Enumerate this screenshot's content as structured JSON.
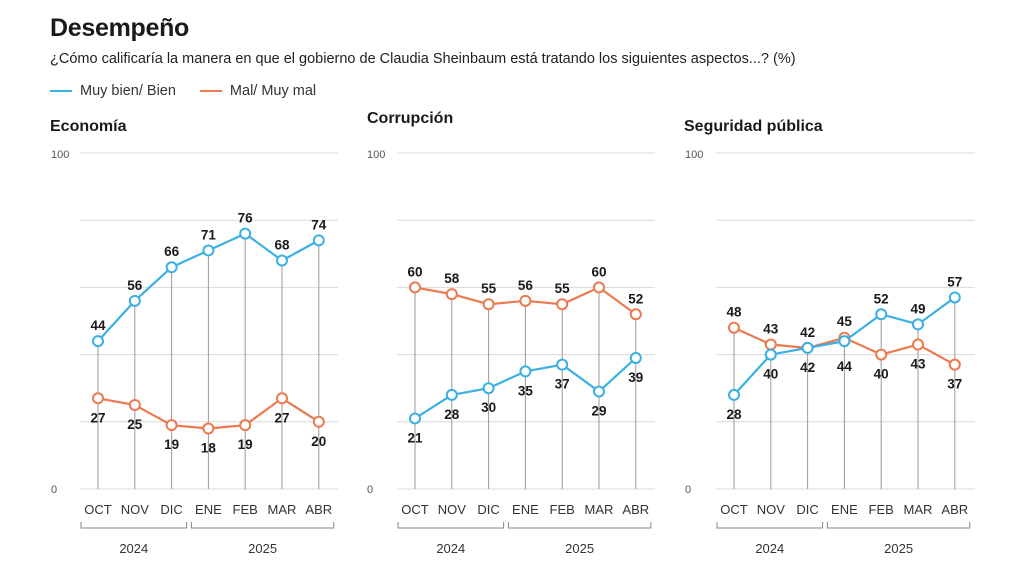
{
  "header": {
    "title": "Desempeño",
    "subtitle": "¿Cómo calificaría la manera en que el gobierno de Claudia Sheinbaum está tratando los siguientes aspectos...? (%)"
  },
  "legend": {
    "good_label": "Muy bien/ Bien",
    "bad_label": "Mal/ Muy mal"
  },
  "colors": {
    "good": "#3ab0e2",
    "bad": "#ec7a51",
    "grid": "#d9d9d9",
    "drop": "#9a9a9a"
  },
  "chart_data": [
    {
      "type": "line",
      "title": "Economía",
      "categories": [
        "OCT",
        "NOV",
        "DIC",
        "ENE",
        "FEB",
        "MAR",
        "ABR"
      ],
      "years": [
        {
          "label": "2024",
          "from": 0,
          "to": 2
        },
        {
          "label": "2025",
          "from": 3,
          "to": 6
        }
      ],
      "ylim": [
        0,
        100
      ],
      "yticks": [
        "100",
        "0"
      ],
      "series": [
        {
          "name": "Muy bien/ Bien",
          "values": [
            44,
            56,
            66,
            71,
            76,
            68,
            74
          ]
        },
        {
          "name": "Mal/ Muy mal",
          "values": [
            27,
            25,
            19,
            18,
            19,
            27,
            20
          ]
        }
      ]
    },
    {
      "type": "line",
      "title": "Corrupción",
      "categories": [
        "OCT",
        "NOV",
        "DIC",
        "ENE",
        "FEB",
        "MAR",
        "ABR"
      ],
      "years": [
        {
          "label": "2024",
          "from": 0,
          "to": 2
        },
        {
          "label": "2025",
          "from": 3,
          "to": 6
        }
      ],
      "ylim": [
        0,
        100
      ],
      "yticks": [
        "100",
        "0"
      ],
      "series": [
        {
          "name": "Muy bien/ Bien",
          "values": [
            21,
            28,
            30,
            35,
            37,
            29,
            39
          ]
        },
        {
          "name": "Mal/ Muy mal",
          "values": [
            60,
            58,
            55,
            56,
            55,
            60,
            52
          ]
        }
      ]
    },
    {
      "type": "line",
      "title": "Seguridad pública",
      "categories": [
        "OCT",
        "NOV",
        "DIC",
        "ENE",
        "FEB",
        "MAR",
        "ABR"
      ],
      "years": [
        {
          "label": "2024",
          "from": 0,
          "to": 2
        },
        {
          "label": "2025",
          "from": 3,
          "to": 6
        }
      ],
      "ylim": [
        0,
        100
      ],
      "yticks": [
        "100",
        "0"
      ],
      "series": [
        {
          "name": "Muy bien/ Bien",
          "values": [
            28,
            40,
            42,
            44,
            52,
            49,
            57
          ]
        },
        {
          "name": "Mal/ Muy mal",
          "values": [
            48,
            43,
            42,
            45,
            40,
            43,
            37
          ]
        }
      ]
    }
  ]
}
